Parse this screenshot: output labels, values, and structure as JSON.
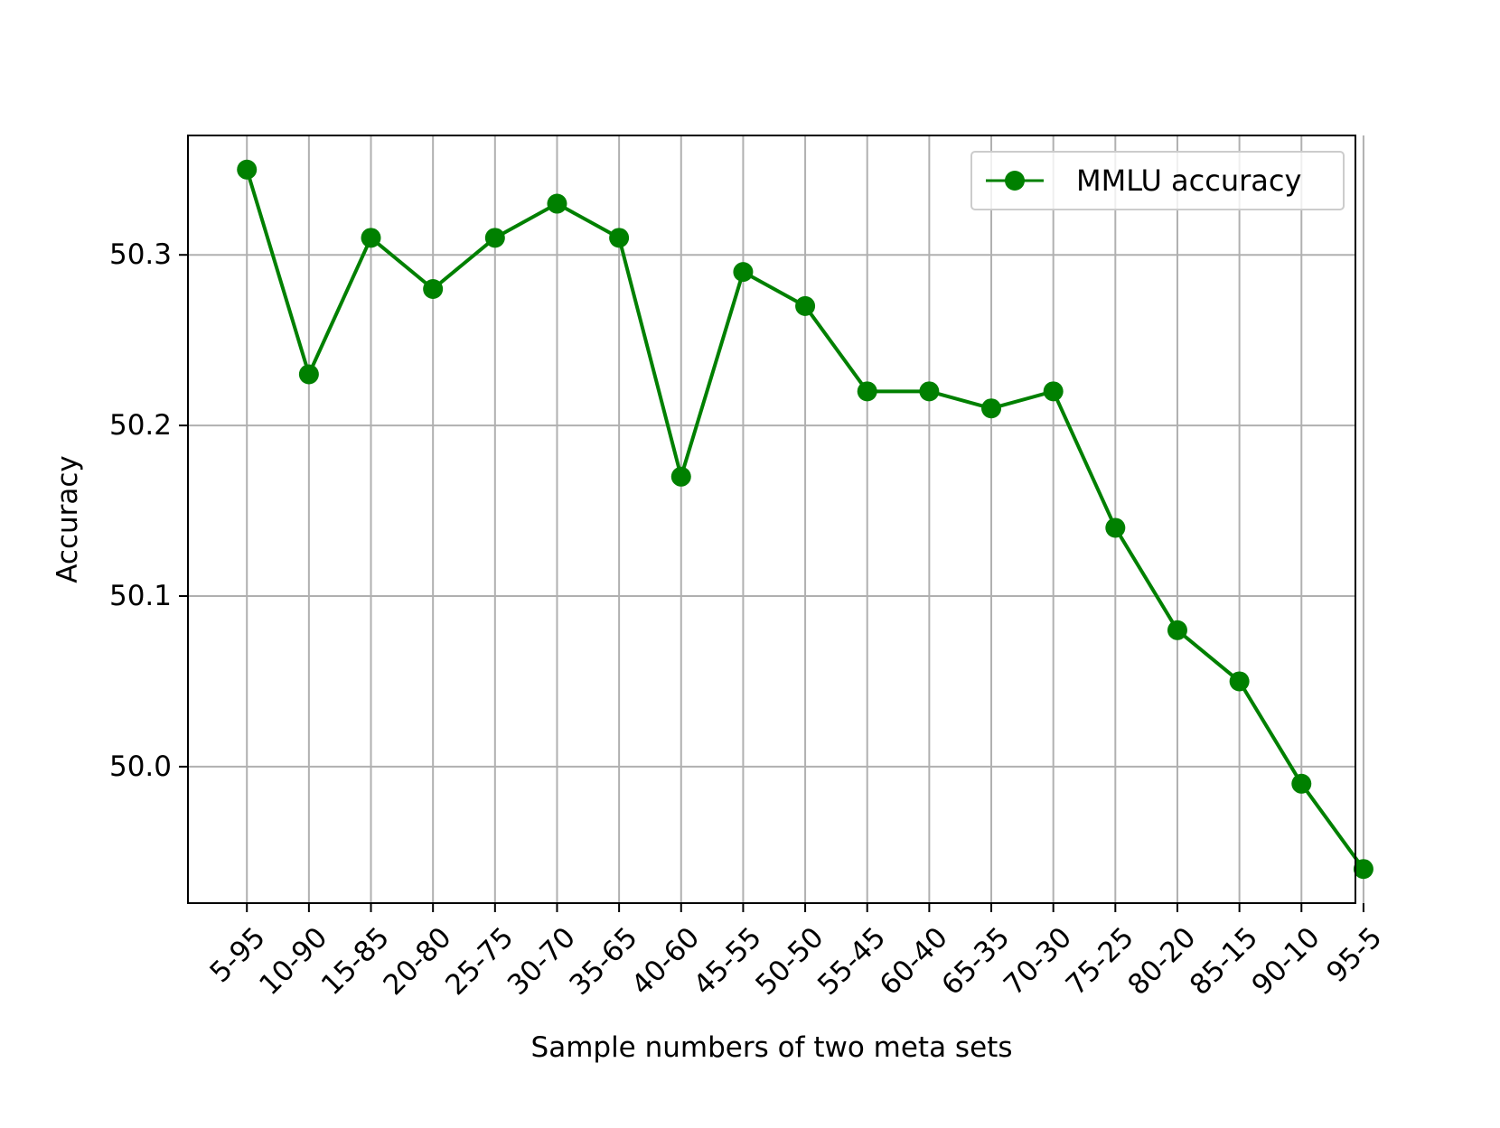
{
  "chart_data": {
    "type": "line",
    "title": "",
    "xlabel": "Sample numbers of two meta sets",
    "ylabel": "Accuracy",
    "categories": [
      "5-95",
      "10-90",
      "15-85",
      "20-80",
      "25-75",
      "30-70",
      "35-65",
      "40-60",
      "45-55",
      "50-50",
      "55-45",
      "60-40",
      "65-35",
      "70-30",
      "75-25",
      "80-20",
      "85-15",
      "90-10",
      "95-5"
    ],
    "series": [
      {
        "name": "MMLU accuracy",
        "values": [
          50.35,
          50.23,
          50.31,
          50.28,
          50.31,
          50.33,
          50.31,
          50.17,
          50.29,
          50.27,
          50.22,
          50.22,
          50.21,
          50.22,
          50.14,
          50.08,
          50.05,
          49.99,
          49.94
        ],
        "color": "#008000",
        "marker": "circle"
      }
    ],
    "ylim": [
      49.92,
      50.37
    ],
    "yticks": [
      50.0,
      50.1,
      50.2,
      50.3
    ],
    "ytick_labels": [
      "50.0",
      "50.1",
      "50.2",
      "50.3"
    ],
    "grid": true,
    "legend_position": "upper right",
    "x_tick_rotation": 45
  }
}
